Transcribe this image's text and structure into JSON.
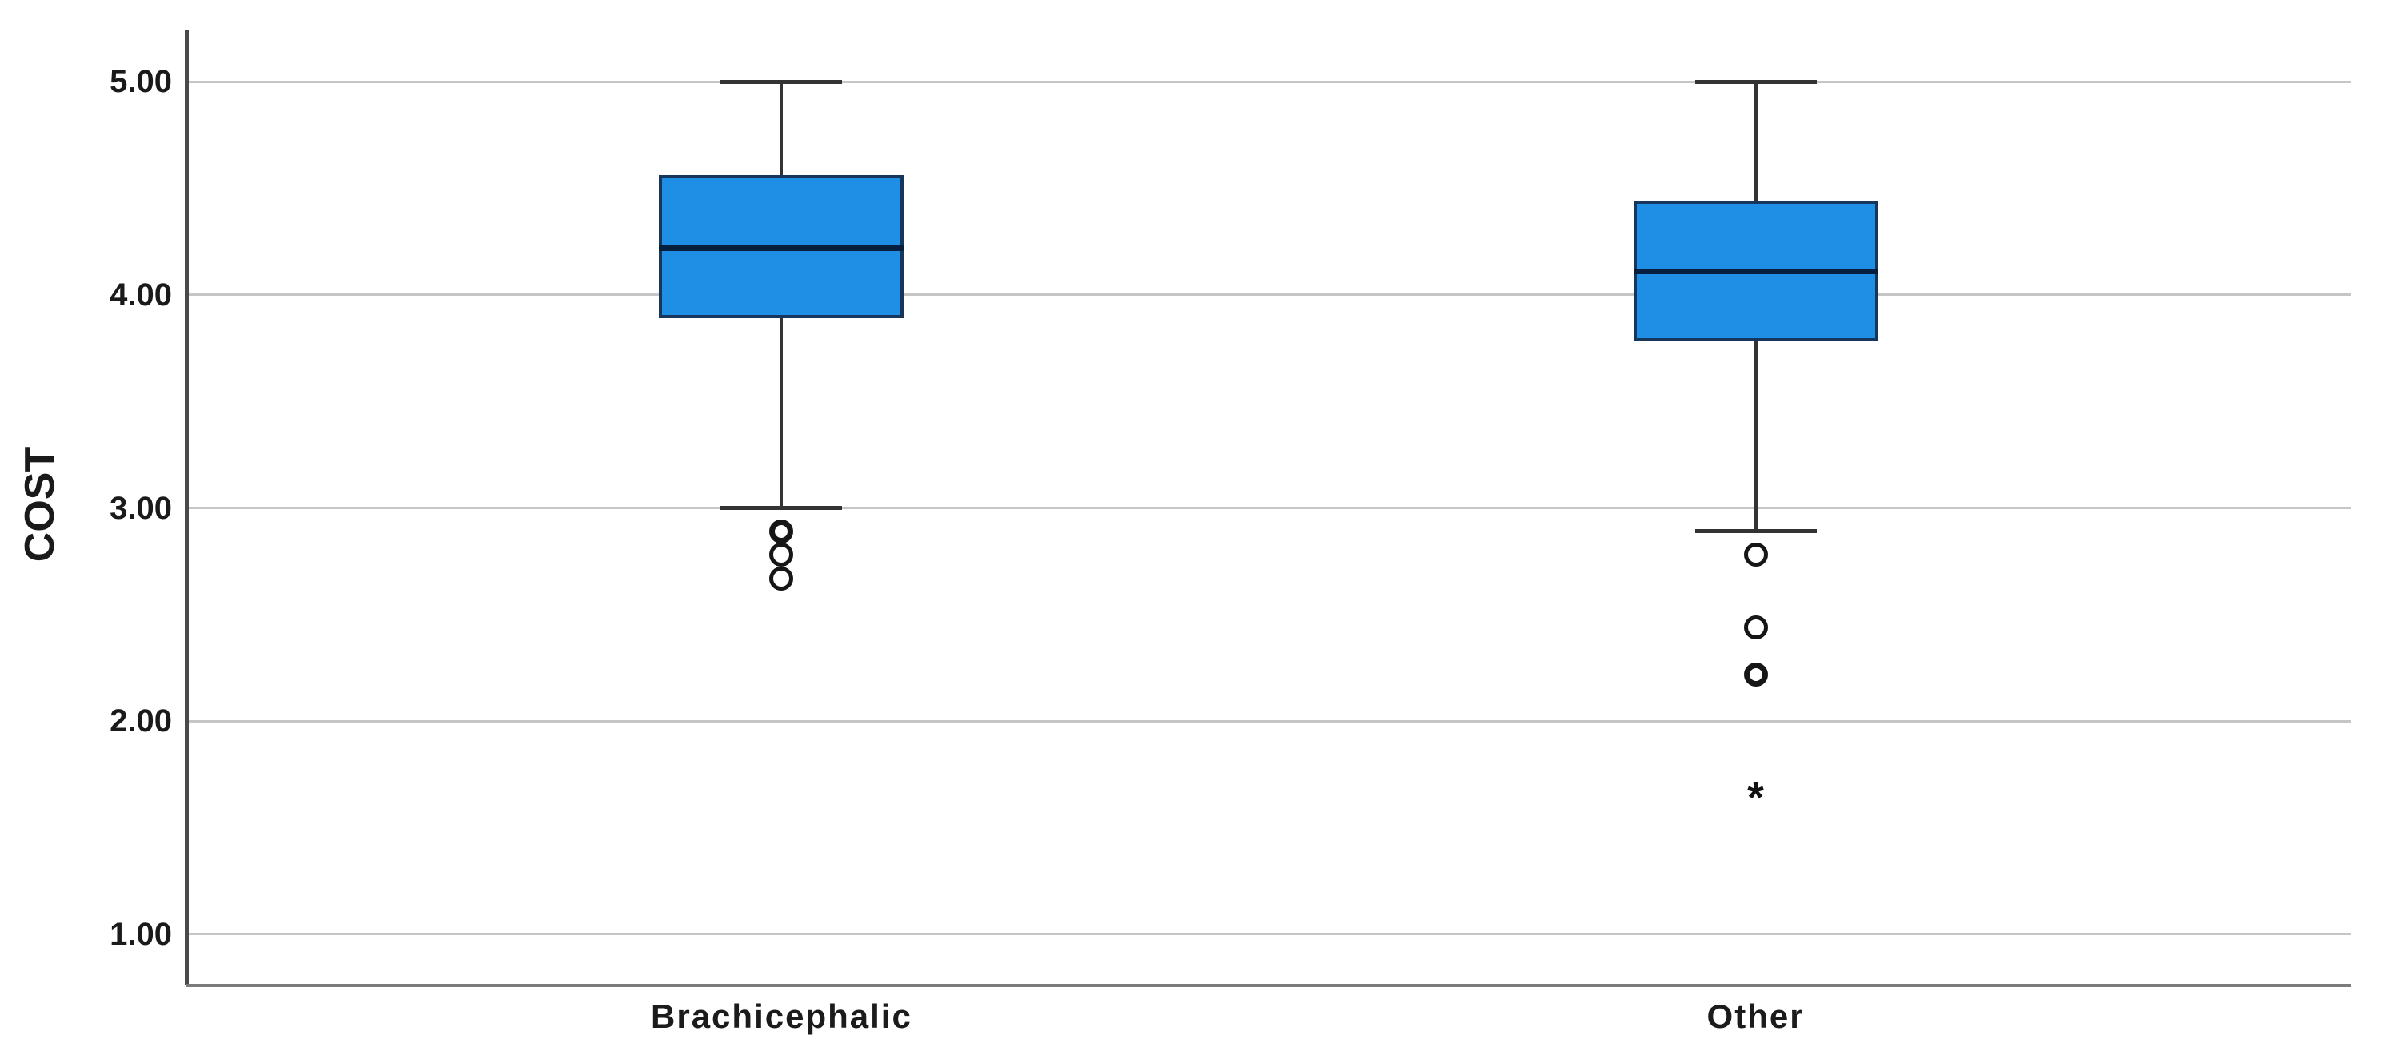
{
  "chart_data": {
    "type": "boxplot",
    "title": "",
    "ylabel": "COST",
    "xlabel": "",
    "ylim": [
      0.76,
      5.24
    ],
    "grid": true,
    "yticks": [
      {
        "value": 5,
        "label": "5.00"
      },
      {
        "value": 4,
        "label": "4.00"
      },
      {
        "value": 3,
        "label": "3.00"
      },
      {
        "value": 2,
        "label": "2.00"
      },
      {
        "value": 1,
        "label": "1.00"
      }
    ],
    "categories": [
      "Brachicephalic",
      "Other"
    ],
    "boxes": [
      {
        "category": "Brachicephalic",
        "whisker_high": 5.0,
        "q3": 4.56,
        "median": 4.22,
        "q1": 3.89,
        "whisker_low": 3.0,
        "outliers": [
          {
            "value": 2.89,
            "marker": "circle",
            "overlap": true
          },
          {
            "value": 2.78,
            "marker": "circle",
            "overlap": false
          },
          {
            "value": 2.67,
            "marker": "circle",
            "overlap": false
          }
        ]
      },
      {
        "category": "Other",
        "whisker_high": 5.0,
        "q3": 4.44,
        "median": 4.11,
        "q1": 3.78,
        "whisker_low": 2.89,
        "outliers": [
          {
            "value": 2.78,
            "marker": "circle",
            "overlap": false
          },
          {
            "value": 2.44,
            "marker": "circle",
            "overlap": false
          },
          {
            "value": 2.22,
            "marker": "circle",
            "overlap": true
          },
          {
            "value": 1.67,
            "marker": "star",
            "overlap": false
          }
        ]
      }
    ],
    "colors": {
      "box_fill": "#1F8FE6",
      "box_border": "#16365C",
      "median": "#071F3F",
      "whisker": "#333333",
      "gridline": "#C6C6C6",
      "axis_left": "#4A4A4A",
      "axis_bottom": "#7B7B7B",
      "outlier": "#161616",
      "text": "#1A1A1A"
    }
  }
}
